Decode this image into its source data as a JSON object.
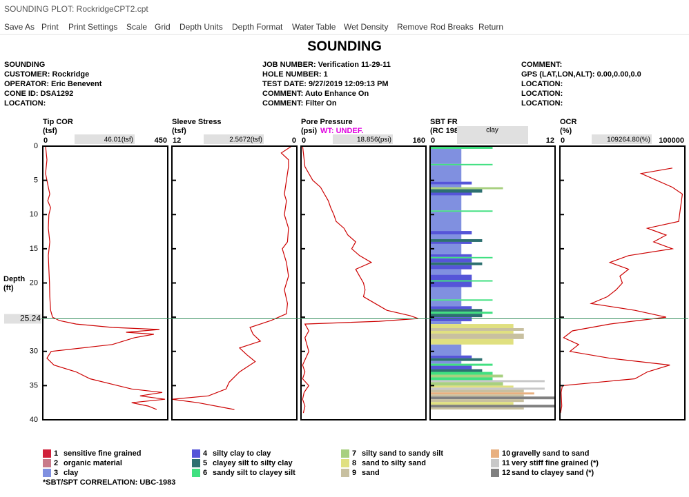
{
  "window_title": "SOUNDING PLOT: RockridgeCPT2.cpt",
  "menu": [
    "Save As",
    "Print",
    "Print Settings",
    "Scale",
    "Grid",
    "Depth Units",
    "Depth Format",
    "Water Table",
    "Wet Density",
    "Remove Rod Breaks",
    "Return"
  ],
  "title": "SOUNDING",
  "header": [
    [
      "SOUNDING",
      "CUSTOMER: Rockridge",
      "OPERATOR: Eric Benevent",
      "CONE ID: DSA1292",
      "LOCATION:"
    ],
    [
      "JOB NUMBER: Verification 11-29-11",
      "HOLE NUMBER: 1",
      "TEST DATE: 9/27/2019 12:09:13 PM",
      "COMMENT: Auto Enhance On",
      "COMMENT: Filter On"
    ],
    [
      "COMMENT:",
      "GPS (LAT,LON,ALT): 0.00,0.00,0.0",
      "LOCATION:",
      "LOCATION:",
      "LOCATION:"
    ]
  ],
  "depth_axis": {
    "label": "Depth",
    "unit": "(ft)",
    "ylim": [
      0,
      40
    ],
    "yticks": [
      0,
      5,
      10,
      15,
      20,
      25,
      30,
      35,
      40
    ]
  },
  "cursor": {
    "depth": 25.24,
    "color": "#2e8b57"
  },
  "tracks": [
    {
      "name": "Tip COR",
      "unit": "(tsf)",
      "readout": "46.01(tsf)",
      "xlim": [
        0,
        450
      ],
      "xticks": [
        0,
        450
      ],
      "color": "#cc0000",
      "depth": [
        0,
        2,
        4,
        6,
        7,
        8,
        9,
        10,
        12,
        14,
        16,
        18,
        20,
        22,
        24,
        25,
        25.5,
        26,
        26.5,
        26.8,
        27.2,
        27.5,
        28,
        29,
        30,
        31,
        32,
        33,
        34,
        34.8,
        35.5,
        36,
        36.5,
        37,
        37.5,
        38,
        38.5
      ],
      "values": [
        10,
        15,
        10,
        20,
        25,
        18,
        28,
        22,
        20,
        25,
        20,
        22,
        24,
        25,
        28,
        35,
        60,
        120,
        250,
        420,
        300,
        400,
        330,
        250,
        30,
        15,
        40,
        120,
        170,
        250,
        320,
        430,
        350,
        440,
        320,
        380,
        410
      ]
    },
    {
      "name": "Sleeve Stress",
      "unit": "(tsf)",
      "readout": "2.5672(tsf)",
      "xlim": [
        12,
        0
      ],
      "xticks": [
        12,
        0
      ],
      "color": "#cc0000",
      "depth": [
        0,
        1,
        2,
        3,
        5,
        7,
        8,
        10,
        12,
        14,
        15,
        17,
        19,
        21,
        23,
        24.5,
        25.5,
        26.5,
        27.5,
        28.5,
        29.5,
        30.5,
        31.5,
        33,
        34.5,
        35.5,
        36.5,
        37,
        37.5,
        38.5
      ],
      "values": [
        0.5,
        1.5,
        0.8,
        0.8,
        1,
        1.2,
        1,
        1.2,
        0.8,
        0.9,
        1.4,
        1,
        0.8,
        1.2,
        0.9,
        1,
        2.5,
        4.5,
        4.2,
        3.5,
        5.5,
        4.8,
        4,
        5.5,
        6.5,
        6.8,
        8.5,
        12,
        9.5,
        6
      ]
    },
    {
      "name": "Pore Pressure",
      "unit": "(psi)",
      "note": "WT: UNDEF.",
      "readout": "18.856(psi)",
      "xlim": [
        0,
        160
      ],
      "xticks": [
        0,
        160
      ],
      "color": "#cc0000",
      "depth": [
        0,
        3,
        5,
        6,
        7,
        8,
        9,
        10,
        11,
        12,
        13,
        14,
        15,
        16,
        17,
        18,
        19,
        20,
        21,
        22,
        23,
        24,
        24.8,
        25.2,
        25.6,
        26,
        27,
        28,
        30,
        32,
        33,
        34,
        35,
        36,
        37,
        38,
        39
      ],
      "values": [
        2,
        5,
        15,
        25,
        30,
        35,
        38,
        42,
        45,
        55,
        60,
        70,
        65,
        75,
        90,
        70,
        75,
        80,
        82,
        80,
        95,
        110,
        140,
        150,
        100,
        5,
        10,
        5,
        10,
        2,
        5,
        2,
        10,
        4,
        2,
        5,
        3
      ]
    },
    {
      "name": "SBT FR",
      "unit": "(RC 198",
      "readout": "clay",
      "xlim": [
        0,
        12
      ],
      "xticks": [
        0,
        12
      ],
      "bars": [
        {
          "top": 0,
          "bottom": 0.4,
          "zone": 6
        },
        {
          "top": 0.4,
          "bottom": 2.6,
          "zone": 3
        },
        {
          "top": 2.6,
          "bottom": 2.8,
          "zone": 6
        },
        {
          "top": 2.8,
          "bottom": 5.2,
          "zone": 3
        },
        {
          "top": 5.2,
          "bottom": 5.6,
          "zone": 4
        },
        {
          "top": 5.6,
          "bottom": 6,
          "zone": 3
        },
        {
          "top": 6,
          "bottom": 6.3,
          "zone": 7
        },
        {
          "top": 6.3,
          "bottom": 6.8,
          "zone": 5
        },
        {
          "top": 6.8,
          "bottom": 7.2,
          "zone": 4
        },
        {
          "top": 7.2,
          "bottom": 9.4,
          "zone": 3
        },
        {
          "top": 9.4,
          "bottom": 9.6,
          "zone": 6
        },
        {
          "top": 9.6,
          "bottom": 12.4,
          "zone": 3
        },
        {
          "top": 12.4,
          "bottom": 12.9,
          "zone": 4
        },
        {
          "top": 12.9,
          "bottom": 13.6,
          "zone": 3
        },
        {
          "top": 13.6,
          "bottom": 14,
          "zone": 5
        },
        {
          "top": 14,
          "bottom": 14.3,
          "zone": 4
        },
        {
          "top": 14.3,
          "bottom": 15.8,
          "zone": 3
        },
        {
          "top": 15.8,
          "bottom": 16.2,
          "zone": 4
        },
        {
          "top": 16.2,
          "bottom": 16.4,
          "zone": 6
        },
        {
          "top": 16.4,
          "bottom": 17,
          "zone": 4
        },
        {
          "top": 17,
          "bottom": 17.4,
          "zone": 5
        },
        {
          "top": 17.4,
          "bottom": 18,
          "zone": 4
        },
        {
          "top": 18,
          "bottom": 18.8,
          "zone": 3
        },
        {
          "top": 18.8,
          "bottom": 19.6,
          "zone": 4
        },
        {
          "top": 19.6,
          "bottom": 19.8,
          "zone": 6
        },
        {
          "top": 19.8,
          "bottom": 20.6,
          "zone": 4
        },
        {
          "top": 20.6,
          "bottom": 22.4,
          "zone": 3
        },
        {
          "top": 22.4,
          "bottom": 22.6,
          "zone": 6
        },
        {
          "top": 22.6,
          "bottom": 23.4,
          "zone": 3
        },
        {
          "top": 23.4,
          "bottom": 23.8,
          "zone": 4
        },
        {
          "top": 23.8,
          "bottom": 24.2,
          "zone": 5
        },
        {
          "top": 24.2,
          "bottom": 24.5,
          "zone": 6
        },
        {
          "top": 24.5,
          "bottom": 25,
          "zone": 5
        },
        {
          "top": 25,
          "bottom": 25.6,
          "zone": 4
        },
        {
          "top": 25.6,
          "bottom": 26,
          "zone": 3
        },
        {
          "top": 26,
          "bottom": 26.6,
          "zone": 8
        },
        {
          "top": 26.6,
          "bottom": 27,
          "zone": 9
        },
        {
          "top": 27,
          "bottom": 27.4,
          "zone": 8
        },
        {
          "top": 27.4,
          "bottom": 28.2,
          "zone": 9
        },
        {
          "top": 28.2,
          "bottom": 29,
          "zone": 8
        },
        {
          "top": 29,
          "bottom": 30.6,
          "zone": 3
        },
        {
          "top": 30.6,
          "bottom": 31,
          "zone": 4
        },
        {
          "top": 31,
          "bottom": 31.4,
          "zone": 5
        },
        {
          "top": 31.4,
          "bottom": 31.8,
          "zone": 3
        },
        {
          "top": 31.8,
          "bottom": 32.1,
          "zone": 6
        },
        {
          "top": 32.1,
          "bottom": 32.6,
          "zone": 4
        },
        {
          "top": 32.6,
          "bottom": 33,
          "zone": 5
        },
        {
          "top": 33,
          "bottom": 33.4,
          "zone": 6
        },
        {
          "top": 33.4,
          "bottom": 33.8,
          "zone": 7
        },
        {
          "top": 33.8,
          "bottom": 34.2,
          "zone": 6
        },
        {
          "top": 34.2,
          "bottom": 34.5,
          "zone": 11
        },
        {
          "top": 34.5,
          "bottom": 35,
          "zone": 7
        },
        {
          "top": 35,
          "bottom": 35.3,
          "zone": 8
        },
        {
          "top": 35.3,
          "bottom": 35.6,
          "zone": 11
        },
        {
          "top": 35.6,
          "bottom": 36,
          "zone": 9
        },
        {
          "top": 36,
          "bottom": 36.3,
          "zone": 10
        },
        {
          "top": 36.3,
          "bottom": 36.6,
          "zone": 9
        },
        {
          "top": 36.6,
          "bottom": 37,
          "zone": 12
        },
        {
          "top": 37,
          "bottom": 37.4,
          "zone": 9
        },
        {
          "top": 37.4,
          "bottom": 37.8,
          "zone": 8
        },
        {
          "top": 37.8,
          "bottom": 38.2,
          "zone": 12
        },
        {
          "top": 38.2,
          "bottom": 38.5,
          "zone": 9
        }
      ]
    },
    {
      "name": "OCR",
      "unit": "(%)",
      "readout": "109264.80(%)",
      "xlim": [
        0,
        100000
      ],
      "xticks": [
        0,
        100000
      ],
      "color": "#cc0000",
      "depth": [
        3.2,
        4,
        6,
        7,
        11,
        12,
        13,
        14,
        15,
        16,
        17,
        18,
        19,
        20,
        21,
        22,
        23,
        24,
        25,
        26,
        27,
        28,
        29,
        30,
        31,
        32,
        33,
        34,
        35,
        36,
        38,
        39
      ],
      "values": [
        90000,
        65000,
        90000,
        98000,
        95000,
        70000,
        85000,
        75000,
        90000,
        55000,
        40000,
        55000,
        48000,
        50000,
        45000,
        38000,
        25000,
        60000,
        85000,
        40000,
        10000,
        3000,
        15000,
        8000,
        40000,
        88000,
        70000,
        60000,
        2000,
        1000,
        1500,
        500
      ]
    }
  ],
  "legend": [
    {
      "zone": 1,
      "label": "sensitive fine grained",
      "color": "#d0203a"
    },
    {
      "zone": 2,
      "label": "organic material",
      "color": "#c87a8a"
    },
    {
      "zone": 3,
      "label": "clay",
      "color": "#8090e0"
    },
    {
      "zone": 4,
      "label": "silty clay to clay",
      "color": "#5555d8"
    },
    {
      "zone": 5,
      "label": "clayey silt to silty clay",
      "color": "#2d7070"
    },
    {
      "zone": 6,
      "label": "sandy silt to clayey silt",
      "color": "#40e080"
    },
    {
      "zone": 7,
      "label": "silty sand to sandy silt",
      "color": "#a8d080"
    },
    {
      "zone": 8,
      "label": "sand to silty sand",
      "color": "#e0e080"
    },
    {
      "zone": 9,
      "label": "sand",
      "color": "#c8c0a0"
    },
    {
      "zone": 10,
      "label": "gravelly sand to sand",
      "color": "#e8b080"
    },
    {
      "zone": 11,
      "label": "very stiff fine grained (*)",
      "color": "#c8c8c8"
    },
    {
      "zone": 12,
      "label": "sand to clayey sand (*)",
      "color": "#808080"
    }
  ],
  "footnote": "*SBT/SPT CORRELATION: UBC-1983"
}
